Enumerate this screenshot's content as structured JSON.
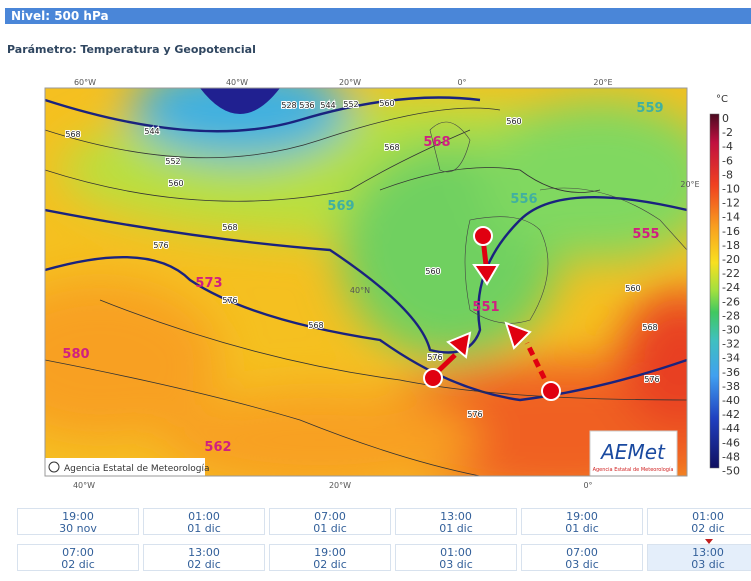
{
  "header": {
    "level": "Nivel: 500 hPa",
    "parameter": "Parámetro: Temperatura y Geopotencial"
  },
  "map": {
    "top_labels": [
      "60°W",
      "40°W",
      "20°W",
      "0°",
      "20°E"
    ],
    "bottom_labels": [
      "40°W",
      "20°W",
      "0°"
    ],
    "side_labels": [
      "20°E",
      "40°N"
    ],
    "centers": [
      "559",
      "568",
      "569",
      "556",
      "555",
      "573",
      "580",
      "551",
      "562"
    ],
    "contours": [
      "528",
      "536",
      "544",
      "552",
      "560",
      "544",
      "552",
      "560",
      "568",
      "568",
      "576",
      "568",
      "560",
      "560",
      "560",
      "568",
      "576",
      "576",
      "568",
      "576",
      "576"
    ],
    "copyright": "Agencia Estatal de Meteorología",
    "logo": "AEMet",
    "logo_sub": "Agencia Estatal de Meteorología"
  },
  "legend": {
    "unit": "°C",
    "ticks": [
      "0",
      "-2",
      "-4",
      "-6",
      "-8",
      "-10",
      "-12",
      "-14",
      "-16",
      "-18",
      "-20",
      "-22",
      "-24",
      "-26",
      "-28",
      "-30",
      "-32",
      "-34",
      "-36",
      "-38",
      "-40",
      "-42",
      "-44",
      "-46",
      "-48",
      "-50"
    ]
  },
  "times": [
    {
      "time": "19:00",
      "date": "30 nov"
    },
    {
      "time": "01:00",
      "date": "01 dic"
    },
    {
      "time": "07:00",
      "date": "01 dic"
    },
    {
      "time": "13:00",
      "date": "01 dic"
    },
    {
      "time": "19:00",
      "date": "01 dic"
    },
    {
      "time": "01:00",
      "date": "02 dic"
    },
    {
      "time": "07:00",
      "date": "02 dic"
    },
    {
      "time": "13:00",
      "date": "02 dic"
    },
    {
      "time": "19:00",
      "date": "02 dic"
    },
    {
      "time": "01:00",
      "date": "03 dic"
    },
    {
      "time": "07:00",
      "date": "03 dic"
    },
    {
      "time": "13:00",
      "date": "03 dic"
    }
  ]
}
